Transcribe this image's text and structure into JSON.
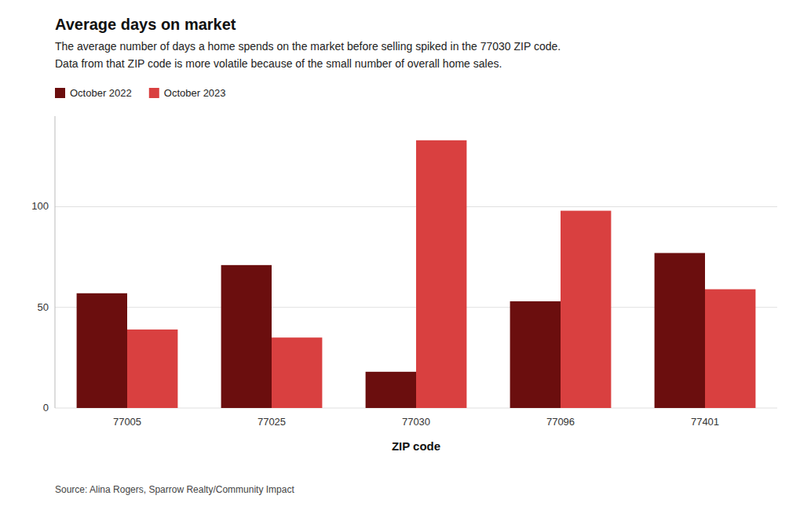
{
  "chart_data": {
    "type": "bar",
    "title": "Average days on market",
    "subtitle": [
      "The average number of days a home spends on the market before selling spiked in the 77030 ZIP code.",
      "Data from that ZIP code is more volatile because of the small number of overall home sales."
    ],
    "source": "Source: Alina Rogers, Sparrow Realty/Community Impact",
    "xlabel": "ZIP code",
    "categories": [
      "77005",
      "77025",
      "77030",
      "77096",
      "77401"
    ],
    "series": [
      {
        "name": "October 2022",
        "color": "#6b0e0e",
        "values": [
          57,
          71,
          18,
          53,
          77
        ]
      },
      {
        "name": "October 2023",
        "color": "#d94040",
        "values": [
          39,
          35,
          133,
          98,
          59
        ]
      }
    ],
    "ylim": [
      0,
      145
    ],
    "yticks": [
      0,
      50,
      100
    ],
    "grid": true,
    "legend": "top"
  }
}
